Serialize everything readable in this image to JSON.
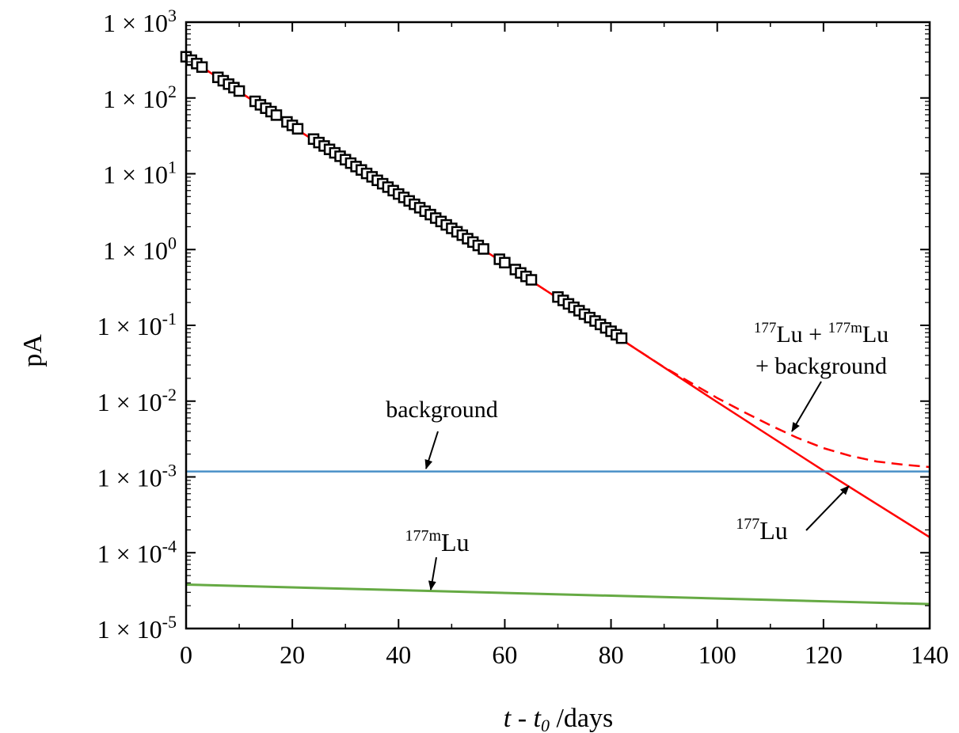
{
  "chart_data": {
    "type": "line",
    "xlabel": {
      "italic_t": "t",
      "separator": " - ",
      "italic_t0_base": "t",
      "italic_t0_sub": "0",
      "unit": " /days"
    },
    "ylabel": "pA",
    "xlim": [
      0,
      140
    ],
    "ylim_log10": [
      -5,
      3
    ],
    "y_scale": "log",
    "x_ticks": [
      0,
      20,
      40,
      60,
      80,
      100,
      120,
      140
    ],
    "y_tick_exponents": [
      3,
      2,
      1,
      0,
      -1,
      -2,
      -3,
      -4,
      -5
    ],
    "y_tick_prefix": "1 × 10",
    "grid": false,
    "colors": {
      "lu177": "#ff0000",
      "total": "#ff0000",
      "background": "#4a90c8",
      "lu177m": "#66aa44",
      "markers": "#000000"
    },
    "series": [
      {
        "key": "lu177",
        "style": "solid",
        "x": [
          0,
          20,
          40,
          60,
          80,
          100,
          120,
          140
        ],
        "y": [
          350,
          42,
          5.3,
          0.65,
          0.08,
          0.0097,
          0.00121,
          0.00016
        ]
      },
      {
        "key": "total",
        "style": "dashed",
        "x": [
          0,
          20,
          40,
          60,
          80,
          90,
          100,
          105,
          110,
          115,
          120,
          125,
          130,
          135,
          140
        ],
        "y": [
          350,
          42,
          5.3,
          0.65,
          0.08,
          0.028,
          0.011,
          0.0072,
          0.0048,
          0.0033,
          0.0024,
          0.0019,
          0.0016,
          0.00145,
          0.00135
        ]
      },
      {
        "key": "background",
        "style": "solid",
        "x": [
          0,
          140
        ],
        "y": [
          0.00118,
          0.00118
        ]
      },
      {
        "key": "lu177m",
        "style": "solid",
        "x": [
          0,
          140
        ],
        "y": [
          3.8e-05,
          2.1e-05
        ]
      }
    ],
    "measurements_x": [
      0,
      1,
      2,
      3,
      6,
      7,
      8,
      9,
      10,
      13,
      14,
      15,
      16,
      17,
      19,
      20,
      21,
      24,
      25,
      26,
      27,
      28,
      29,
      30,
      31,
      32,
      33,
      34,
      35,
      36,
      37,
      38,
      39,
      40,
      41,
      42,
      43,
      44,
      45,
      46,
      47,
      48,
      49,
      50,
      51,
      52,
      53,
      54,
      55,
      56,
      59,
      60,
      62,
      63,
      64,
      65,
      70,
      71,
      72,
      73,
      74,
      75,
      76,
      77,
      78,
      79,
      80,
      81,
      82
    ],
    "annotations": {
      "total_line1": {
        "sup_a": "177",
        "mid_a": "Lu + ",
        "sup_b": "177m",
        "mid_b": "Lu"
      },
      "total_line2": "+ background",
      "background": "background",
      "lu177m": {
        "sup": "177m",
        "text": "Lu"
      },
      "lu177": {
        "sup": "177",
        "text": "Lu"
      }
    }
  }
}
